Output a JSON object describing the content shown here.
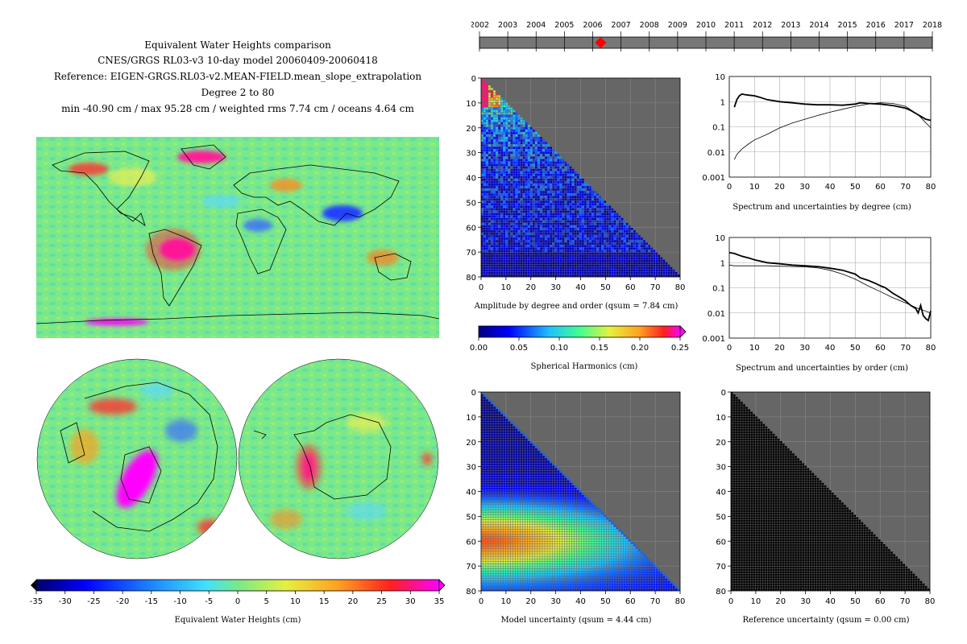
{
  "header": {
    "title": "Equivalent Water Heights comparison",
    "model": "CNES/GRGS RL03-v3 10-day model 20060409-20060418",
    "reference": "Reference: EIGEN-GRGS.RL03-v2.MEAN-FIELD.mean_slope_extrapolation",
    "degree": "Degree 2 to 80",
    "stats": "min -40.90 cm / max 95.28 cm / weighted rms 7.74 cm / oceans 4.64 cm"
  },
  "timeline": {
    "years": [
      "2002",
      "2003",
      "2004",
      "2005",
      "2006",
      "2007",
      "2008",
      "2009",
      "2010",
      "2011",
      "2012",
      "2013",
      "2014",
      "2015",
      "2016",
      "2017",
      "2018"
    ],
    "marker_date": "2006.28"
  },
  "ewh_colorbar": {
    "ticks": [
      "-35",
      "-30",
      "-25",
      "-20",
      "-15",
      "-10",
      "-5",
      "0",
      "5",
      "10",
      "15",
      "20",
      "25",
      "30",
      "35"
    ],
    "label": "Equivalent Water Heights (cm)"
  },
  "sh_colorbar": {
    "ticks": [
      "0.00",
      "0.05",
      "0.10",
      "0.15",
      "0.20",
      "0.25"
    ],
    "label": "Spherical Harmonics (cm)"
  },
  "colors": {
    "ocean": "#79e98a",
    "void_gray": "#666666",
    "marker": "#ff0000"
  },
  "panels": {
    "amplitude": {
      "caption": "Amplitude by degree and order (qsum = 7.84 cm)"
    },
    "model_unc": {
      "caption": "Model uncertainty (qsum = 4.44 cm)"
    },
    "ref_unc": {
      "caption": "Reference uncertainty (qsum = 0.00 cm)"
    },
    "spec_degree": {
      "caption": "Spectrum and uncertainties by degree (cm)"
    },
    "spec_order": {
      "caption": "Spectrum and uncertainties by order (cm)"
    }
  },
  "chart_data": [
    {
      "type": "heatmap",
      "name": "amplitude",
      "xlabel": "",
      "ylabel": "",
      "x_ticks": [
        "0",
        "10",
        "20",
        "30",
        "40",
        "50",
        "60",
        "70",
        "80"
      ],
      "y_ticks": [
        "0",
        "10",
        "20",
        "30",
        "40",
        "50",
        "60",
        "70",
        "80"
      ],
      "xlim": [
        0,
        80
      ],
      "ylim": [
        0,
        80
      ],
      "color_range": [
        0.0,
        0.25
      ]
    },
    {
      "type": "heatmap",
      "name": "model_uncertainty",
      "x_ticks": [
        "0",
        "10",
        "20",
        "30",
        "40",
        "50",
        "60",
        "70",
        "80"
      ],
      "y_ticks": [
        "0",
        "10",
        "20",
        "30",
        "40",
        "50",
        "60",
        "70",
        "80"
      ],
      "xlim": [
        0,
        80
      ],
      "ylim": [
        0,
        80
      ]
    },
    {
      "type": "heatmap",
      "name": "reference_uncertainty",
      "x_ticks": [
        "0",
        "10",
        "20",
        "30",
        "40",
        "50",
        "60",
        "70",
        "80"
      ],
      "y_ticks": [
        "0",
        "10",
        "20",
        "30",
        "40",
        "50",
        "60",
        "70",
        "80"
      ],
      "xlim": [
        0,
        80
      ],
      "ylim": [
        0,
        80
      ]
    },
    {
      "type": "line",
      "name": "spectrum_by_degree",
      "y_scale": "log",
      "xlim": [
        0,
        80
      ],
      "ylim": [
        0.001,
        10
      ],
      "x_ticks": [
        "0",
        "10",
        "20",
        "30",
        "40",
        "50",
        "60",
        "70",
        "80"
      ],
      "y_ticks": [
        "10",
        "1",
        "0.1",
        "0.01",
        "0.001"
      ],
      "series": [
        {
          "x": [
            2,
            3,
            4,
            5,
            6,
            8,
            10,
            12,
            15,
            20,
            25,
            30,
            35,
            40,
            45,
            50,
            52,
            55,
            60,
            65,
            70,
            72,
            75,
            78,
            80
          ],
          "y": [
            0.6,
            1.2,
            1.7,
            2.0,
            1.9,
            1.8,
            1.7,
            1.5,
            1.2,
            1.0,
            0.9,
            0.8,
            0.75,
            0.75,
            0.72,
            0.8,
            0.9,
            0.85,
            0.8,
            0.7,
            0.55,
            0.45,
            0.3,
            0.2,
            0.18
          ]
        },
        {
          "x": [
            2,
            3,
            5,
            8,
            10,
            15,
            20,
            25,
            30,
            35,
            40,
            45,
            50,
            55,
            60,
            65,
            70,
            75,
            80
          ],
          "y": [
            0.005,
            0.008,
            0.013,
            0.022,
            0.03,
            0.05,
            0.09,
            0.14,
            0.2,
            0.28,
            0.38,
            0.5,
            0.65,
            0.8,
            0.9,
            0.85,
            0.65,
            0.3,
            0.09
          ]
        }
      ]
    },
    {
      "type": "line",
      "name": "spectrum_by_order",
      "y_scale": "log",
      "xlim": [
        0,
        80
      ],
      "ylim": [
        0.001,
        10
      ],
      "x_ticks": [
        "0",
        "10",
        "20",
        "30",
        "40",
        "50",
        "60",
        "70",
        "80"
      ],
      "y_ticks": [
        "10",
        "1",
        "0.1",
        "0.01",
        "0.001"
      ],
      "series": [
        {
          "x": [
            0,
            2,
            5,
            8,
            10,
            15,
            20,
            25,
            30,
            35,
            40,
            45,
            50,
            52,
            55,
            58,
            60,
            62,
            65,
            68,
            70,
            72,
            74,
            75,
            76,
            77,
            78,
            79,
            80
          ],
          "y": [
            2.5,
            2.3,
            1.8,
            1.5,
            1.3,
            1.0,
            0.9,
            0.8,
            0.75,
            0.7,
            0.6,
            0.5,
            0.35,
            0.25,
            0.2,
            0.15,
            0.12,
            0.1,
            0.06,
            0.04,
            0.03,
            0.02,
            0.015,
            0.01,
            0.02,
            0.008,
            0.006,
            0.005,
            0.012
          ]
        },
        {
          "x": [
            0,
            2,
            5,
            10,
            15,
            20,
            25,
            30,
            35,
            40,
            45,
            50,
            55,
            60,
            65,
            70,
            75,
            80
          ],
          "y": [
            0.8,
            0.75,
            0.75,
            0.75,
            0.75,
            0.72,
            0.7,
            0.68,
            0.62,
            0.5,
            0.35,
            0.22,
            0.12,
            0.07,
            0.04,
            0.025,
            0.015,
            0.01
          ]
        }
      ]
    }
  ]
}
